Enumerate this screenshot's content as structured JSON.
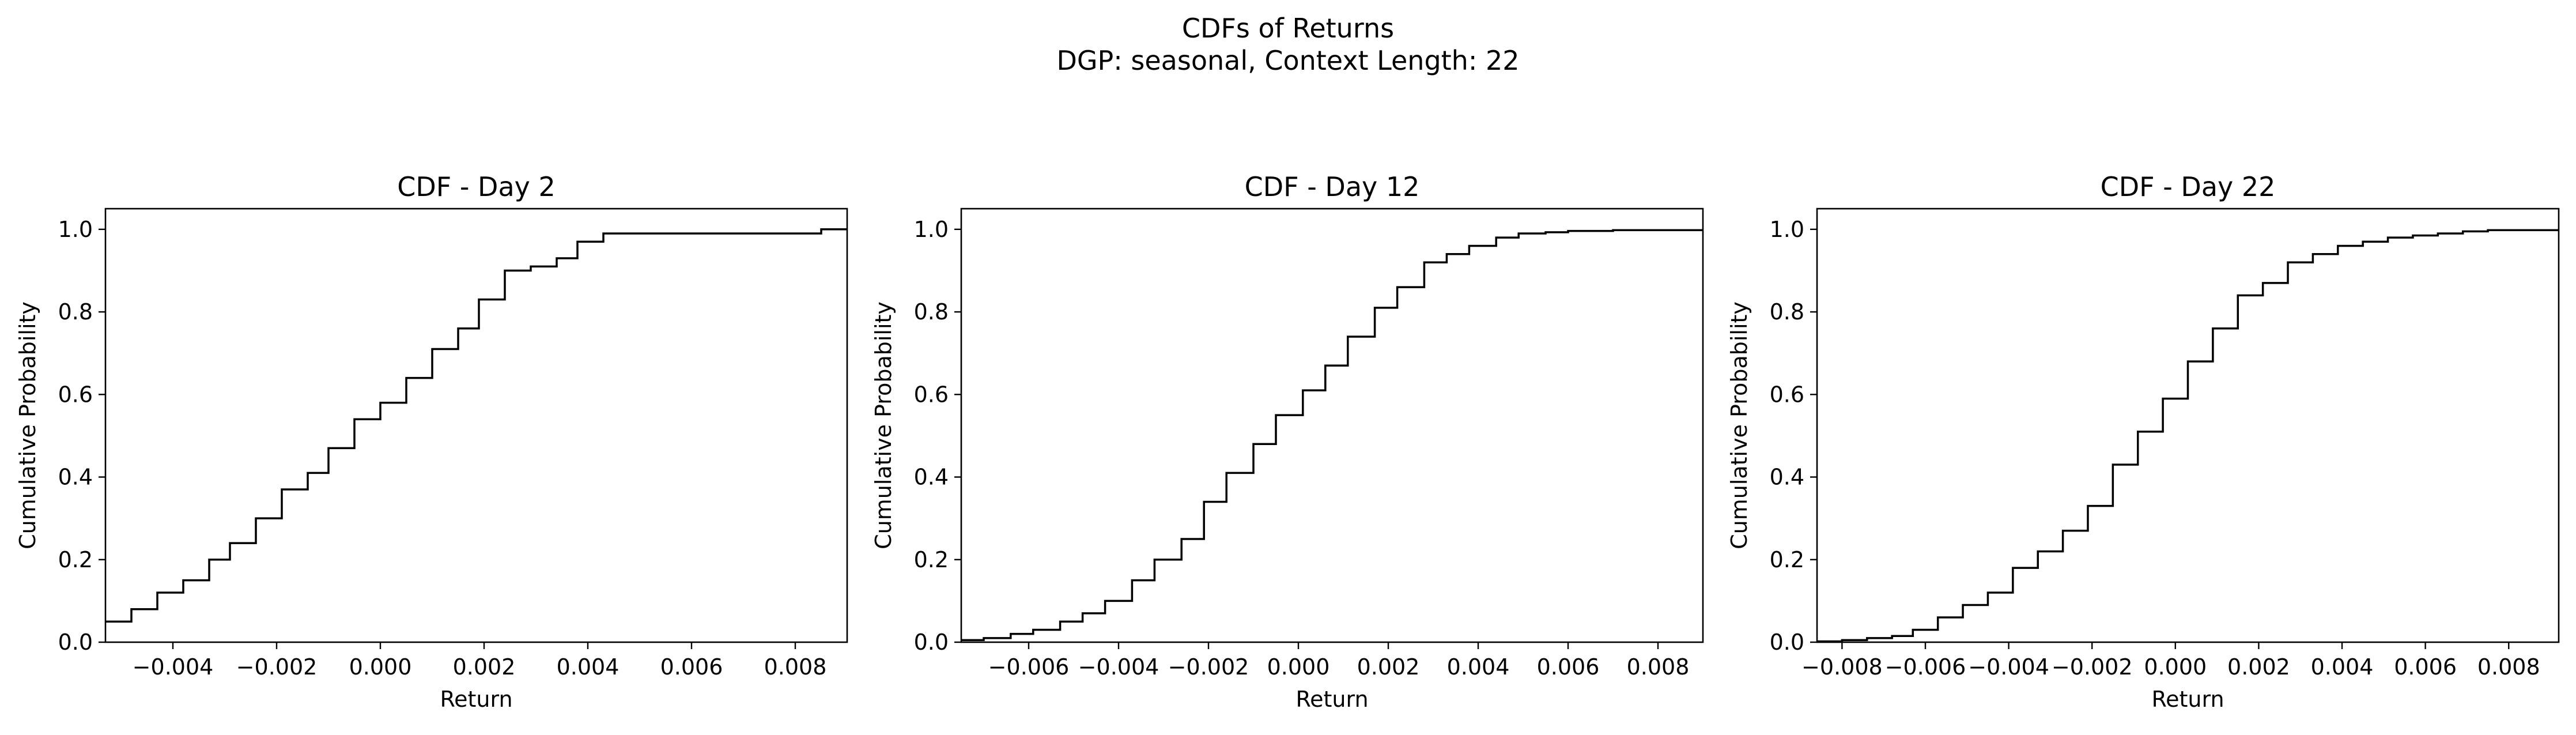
{
  "figure": {
    "title": "CDFs of Returns",
    "subtitle": "DGP: seasonal, Context Length: 22"
  },
  "chart_data": [
    {
      "type": "line",
      "step": true,
      "title": "CDF - Day 2",
      "xlabel": "Return",
      "ylabel": "Cumulative Probability",
      "xlim": [
        -0.0053,
        0.009
      ],
      "ylim": [
        0,
        1.05
      ],
      "xticks": [
        -0.004,
        -0.002,
        0.0,
        0.002,
        0.004,
        0.006,
        0.008
      ],
      "xtick_labels": [
        "−0.004",
        "−0.002",
        "0.000",
        "0.002",
        "0.004",
        "0.006",
        "0.008"
      ],
      "yticks": [
        0.0,
        0.2,
        0.4,
        0.6,
        0.8,
        1.0
      ],
      "ytick_labels": [
        "0.0",
        "0.2",
        "0.4",
        "0.6",
        "0.8",
        "1.0"
      ],
      "grid": false,
      "series": [
        {
          "color": "#000000",
          "x": [
            -0.0053,
            -0.0048,
            -0.0043,
            -0.0038,
            -0.0033,
            -0.0029,
            -0.0024,
            -0.0019,
            -0.0014,
            -0.001,
            -0.0005,
            0.0,
            0.0005,
            0.001,
            0.0015,
            0.0019,
            0.0024,
            0.0029,
            0.0034,
            0.0038,
            0.0043,
            0.0085,
            0.009
          ],
          "y": [
            0.05,
            0.08,
            0.12,
            0.15,
            0.2,
            0.24,
            0.3,
            0.37,
            0.41,
            0.47,
            0.54,
            0.58,
            0.64,
            0.71,
            0.76,
            0.83,
            0.9,
            0.91,
            0.93,
            0.97,
            0.99,
            1.0,
            1.0
          ]
        }
      ]
    },
    {
      "type": "line",
      "step": true,
      "title": "CDF - Day 12",
      "xlabel": "Return",
      "ylabel": "Cumulative Probability",
      "xlim": [
        -0.0075,
        0.009
      ],
      "ylim": [
        0,
        1.05
      ],
      "xticks": [
        -0.006,
        -0.004,
        -0.002,
        0.0,
        0.002,
        0.004,
        0.006,
        0.008
      ],
      "xtick_labels": [
        "−0.006",
        "−0.004",
        "−0.002",
        "0.000",
        "0.002",
        "0.004",
        "0.006",
        "0.008"
      ],
      "yticks": [
        0.0,
        0.2,
        0.4,
        0.6,
        0.8,
        1.0
      ],
      "ytick_labels": [
        "0.0",
        "0.2",
        "0.4",
        "0.6",
        "0.8",
        "1.0"
      ],
      "grid": false,
      "series": [
        {
          "color": "#000000",
          "x": [
            -0.0075,
            -0.007,
            -0.0064,
            -0.0059,
            -0.0053,
            -0.0048,
            -0.0043,
            -0.0037,
            -0.0032,
            -0.0026,
            -0.0021,
            -0.0016,
            -0.001,
            -0.0005,
            0.0001,
            0.0006,
            0.0011,
            0.0017,
            0.0022,
            0.0028,
            0.0033,
            0.0038,
            0.0044,
            0.0049,
            0.0055,
            0.006,
            0.007,
            0.009
          ],
          "y": [
            0.005,
            0.01,
            0.02,
            0.03,
            0.05,
            0.07,
            0.1,
            0.15,
            0.2,
            0.25,
            0.34,
            0.41,
            0.48,
            0.55,
            0.61,
            0.67,
            0.74,
            0.81,
            0.86,
            0.92,
            0.94,
            0.96,
            0.98,
            0.99,
            0.993,
            0.996,
            0.998,
            1.0
          ]
        }
      ]
    },
    {
      "type": "line",
      "step": true,
      "title": "CDF - Day 22",
      "xlabel": "Return",
      "ylabel": "Cumulative Probability",
      "xlim": [
        -0.0086,
        0.0092
      ],
      "ylim": [
        0,
        1.05
      ],
      "xticks": [
        -0.008,
        -0.006,
        -0.004,
        -0.002,
        0.0,
        0.002,
        0.004,
        0.006,
        0.008
      ],
      "xtick_labels": [
        "−0.008",
        "−0.006",
        "−0.004",
        "−0.002",
        "0.000",
        "0.002",
        "0.004",
        "0.006",
        "0.008"
      ],
      "yticks": [
        0.0,
        0.2,
        0.4,
        0.6,
        0.8,
        1.0
      ],
      "ytick_labels": [
        "0.0",
        "0.2",
        "0.4",
        "0.6",
        "0.8",
        "1.0"
      ],
      "grid": false,
      "series": [
        {
          "color": "#000000",
          "x": [
            -0.0086,
            -0.008,
            -0.0074,
            -0.0068,
            -0.0063,
            -0.0057,
            -0.0051,
            -0.0045,
            -0.0039,
            -0.0033,
            -0.0027,
            -0.0021,
            -0.0015,
            -0.0009,
            -0.0003,
            0.0003,
            0.0009,
            0.0015,
            0.0021,
            0.0027,
            0.0033,
            0.0039,
            0.0045,
            0.0051,
            0.0057,
            0.0063,
            0.0069,
            0.0075,
            0.0092
          ],
          "y": [
            0.002,
            0.005,
            0.01,
            0.015,
            0.03,
            0.06,
            0.09,
            0.12,
            0.18,
            0.22,
            0.27,
            0.33,
            0.43,
            0.51,
            0.59,
            0.68,
            0.76,
            0.84,
            0.87,
            0.92,
            0.94,
            0.96,
            0.97,
            0.98,
            0.985,
            0.99,
            0.995,
            0.998,
            1.0
          ]
        }
      ]
    }
  ]
}
